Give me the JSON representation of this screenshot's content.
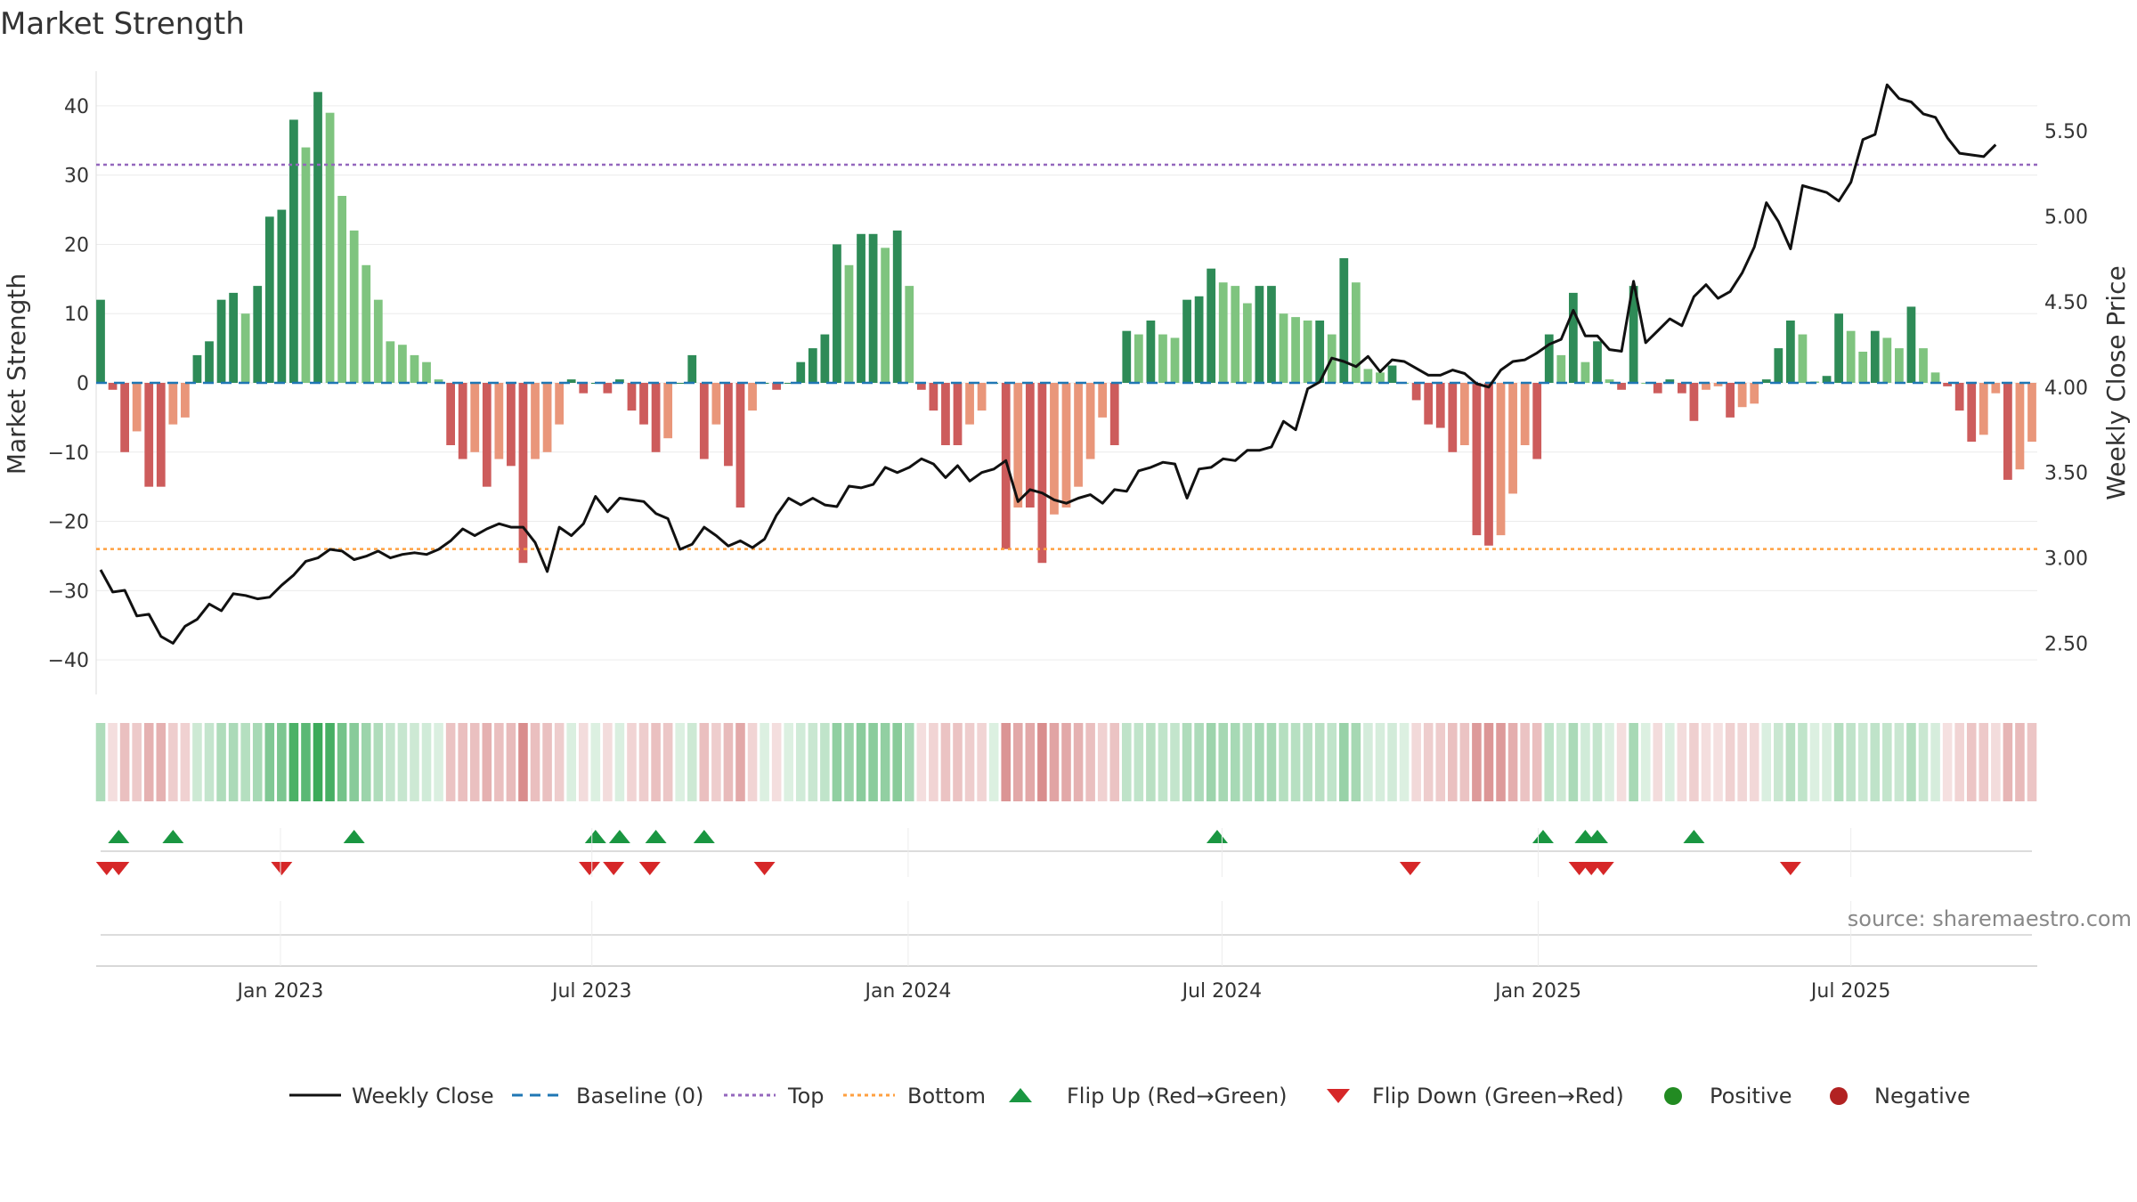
{
  "chart_data": {
    "type": "bar+line",
    "title": "Market Strength",
    "ylabel_left": "Market Strength",
    "ylabel_right": "Weekly Close Price",
    "ylim_left": [
      -45,
      45
    ],
    "ylim_right": [
      2.2,
      5.85
    ],
    "left_ticks": [
      "−40",
      "−30",
      "−20",
      "−10",
      "0",
      "10",
      "20",
      "30",
      "40"
    ],
    "left_tick_values": [
      -40,
      -30,
      -20,
      -10,
      0,
      10,
      20,
      30,
      40
    ],
    "right_ticks": [
      "2.50",
      "3.00",
      "3.50",
      "4.00",
      "4.50",
      "5.00",
      "5.50"
    ],
    "right_tick_values": [
      2.5,
      3.0,
      3.5,
      4.0,
      4.5,
      5.0,
      5.5
    ],
    "date_ticks": [
      "Jan 2023",
      "Jul 2023",
      "Jan 2024",
      "Jul 2024",
      "Jan 2025",
      "Jul 2025"
    ],
    "date_tick_week_index": [
      14.9,
      40.7,
      66.9,
      92.9,
      119.1,
      145.0
    ],
    "top_level": 31.5,
    "bottom_level": -24,
    "strength_values": [
      12,
      -1,
      -10,
      -7,
      -15,
      -15,
      -6,
      -5,
      4,
      6,
      12,
      13,
      10,
      14,
      24,
      25,
      38,
      34,
      42,
      39,
      27,
      22,
      17,
      12,
      6,
      5.5,
      4,
      3,
      0.5,
      -9,
      -11,
      -10,
      -15,
      -11,
      -12,
      -26,
      -11,
      -10,
      -6,
      0.5,
      -1.5,
      0,
      -1.5,
      0.5,
      -4,
      -6,
      -10,
      -8,
      0,
      4,
      -11,
      -6,
      -12,
      -18,
      -4,
      0,
      -1,
      0,
      3,
      5,
      7,
      20,
      17,
      21.5,
      21.5,
      19.5,
      22,
      14,
      -1,
      -4,
      -9,
      -9,
      -6,
      -4,
      0,
      -24,
      -18,
      -18,
      -26,
      -19,
      -18,
      -15,
      -11,
      -5,
      -9,
      7.5,
      7,
      9,
      7,
      6.5,
      12,
      12.5,
      16.5,
      14.5,
      14,
      11.5,
      14,
      14,
      10,
      9.5,
      9,
      9,
      7,
      18,
      14.5,
      2,
      1.5,
      2.5,
      0,
      -2.5,
      -6,
      -6.5,
      -10,
      -9,
      -22,
      -23.5,
      -22,
      -16,
      -9,
      -11,
      7,
      4,
      13,
      3,
      6,
      0.5,
      -1,
      14,
      0,
      -1.5,
      0.5,
      -1.5,
      -5.5,
      -1,
      -0.5,
      -5,
      -3.5,
      -3,
      0.5,
      5,
      9,
      7,
      0.2,
      1,
      10,
      7.5,
      4.5,
      7.5,
      6.5,
      5,
      11,
      5,
      1.5,
      -0.5,
      -4,
      -8.5,
      -7.5,
      -1.5,
      -14,
      -12.5,
      -8.5
    ],
    "close_values": [
      2.93,
      2.8,
      2.81,
      2.66,
      2.67,
      2.54,
      2.5,
      2.6,
      2.64,
      2.73,
      2.69,
      2.79,
      2.78,
      2.76,
      2.77,
      2.84,
      2.9,
      2.98,
      3.0,
      3.05,
      3.04,
      2.99,
      3.01,
      3.04,
      3.0,
      3.02,
      3.03,
      3.02,
      3.05,
      3.1,
      3.17,
      3.13,
      3.17,
      3.2,
      3.18,
      3.18,
      3.09,
      2.92,
      3.18,
      3.13,
      3.2,
      3.36,
      3.27,
      3.35,
      3.34,
      3.33,
      3.26,
      3.23,
      3.05,
      3.08,
      3.18,
      3.13,
      3.07,
      3.1,
      3.06,
      3.11,
      3.25,
      3.35,
      3.31,
      3.35,
      3.31,
      3.3,
      3.42,
      3.41,
      3.43,
      3.53,
      3.5,
      3.53,
      3.58,
      3.55,
      3.47,
      3.54,
      3.45,
      3.5,
      3.52,
      3.57,
      3.33,
      3.4,
      3.38,
      3.34,
      3.32,
      3.35,
      3.37,
      3.32,
      3.4,
      3.39,
      3.51,
      3.53,
      3.56,
      3.55,
      3.35,
      3.52,
      3.53,
      3.58,
      3.57,
      3.63,
      3.63,
      3.65,
      3.8,
      3.75,
      3.99,
      4.03,
      4.17,
      4.15,
      4.12,
      4.18,
      4.09,
      4.16,
      4.15,
      4.11,
      4.07,
      4.07,
      4.1,
      4.08,
      4.02,
      4.0,
      4.1,
      4.15,
      4.16,
      4.2,
      4.25,
      4.28,
      4.45,
      4.3,
      4.3,
      4.22,
      4.21,
      4.62,
      4.26,
      4.33,
      4.4,
      4.36,
      4.53,
      4.6,
      4.52,
      4.56,
      4.67,
      4.82,
      5.08,
      4.97,
      4.81,
      5.18,
      5.16,
      5.14,
      5.09,
      5.2,
      5.45,
      5.48,
      5.77,
      5.69,
      5.67,
      5.6,
      5.58,
      5.46,
      5.37,
      5.36,
      5.35,
      5.42
    ],
    "flip_up_weeks": [
      1.5,
      6,
      21,
      41,
      43,
      46,
      50,
      92.5,
      119.5,
      123,
      124,
      132
    ],
    "flip_down_weeks": [
      0.5,
      1.5,
      15,
      40.5,
      42.5,
      45.5,
      55,
      108.5,
      122.5,
      123.5,
      124.5,
      140
    ],
    "colors": {
      "pos_strong": "#2e8b57",
      "pos_light": "#7fc47f",
      "neg_strong": "#cd5c5c",
      "neg_light": "#e9967a",
      "line": "#111111",
      "baseline": "#1f77b4",
      "top": "#9467bd",
      "bottom": "#ffa040",
      "flip_up": "#1a9641",
      "flip_down": "#d62728",
      "positive": "#228b22",
      "negative": "#b22222"
    },
    "legend": {
      "weekly_close": "Weekly Close",
      "baseline": "Baseline (0)",
      "top": "Top",
      "bottom": "Bottom",
      "flip_up": "Flip Up (Red→Green)",
      "flip_down": "Flip Down (Green→Red)",
      "positive": "Positive",
      "negative": "Negative"
    },
    "source": "source: sharemaestro.com"
  }
}
